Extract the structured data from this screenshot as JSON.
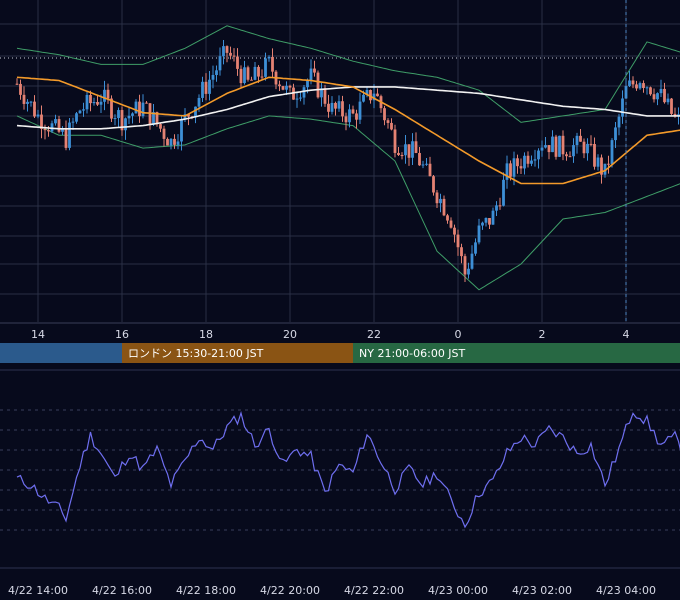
{
  "colors": {
    "background": "#070a1c",
    "grid": "#2a2f45",
    "candle_up": "#3d8fd6",
    "candle_down": "#e48273",
    "ma_short": "#f39a2a",
    "ma_long": "#f2f2f2",
    "bollinger": "#3f9e68",
    "rsi_line": "#6f6ff0",
    "session_asia": "#2b5a8c",
    "session_london": "#8a5414",
    "session_ny": "#276843",
    "reference_line": "#c9ccd8",
    "crosshair": "#4f86c2"
  },
  "sessions": [
    {
      "name": "asia",
      "label": ""
    },
    {
      "name": "london",
      "label": "ロンドン 15:30-21:00 JST"
    },
    {
      "name": "ny",
      "label": "NY 21:00-06:00 JST"
    }
  ],
  "price_axis": {
    "tick_labels": [
      "14",
      "16",
      "18",
      "20",
      "22",
      "0",
      "2",
      "4"
    ]
  },
  "time_axis": {
    "tick_labels": [
      "4/22 14:00",
      "4/22 16:00",
      "4/22 18:00",
      "4/22 20:00",
      "4/22 22:00",
      "4/23 00:00",
      "4/23 02:00",
      "4/23 04:00"
    ]
  },
  "chart_data": [
    {
      "type": "candlestick",
      "title": "",
      "x_start": "4/22 13:00",
      "x_end": "4/23 05:40",
      "ylim": [
        0,
        100
      ],
      "grid": true,
      "indicators": [
        "short moving average",
        "long moving average",
        "bollinger bands"
      ],
      "reference_level": 82,
      "cursor_time": "4/23 03:30",
      "price_path": [
        {
          "x": "4/22 13:00",
          "y": 74
        },
        {
          "x": "4/22 13:30",
          "y": 64
        },
        {
          "x": "4/22 14:10",
          "y": 57
        },
        {
          "x": "4/22 14:30",
          "y": 66
        },
        {
          "x": "4/22 15:00",
          "y": 70
        },
        {
          "x": "4/22 15:30",
          "y": 63
        },
        {
          "x": "4/22 16:00",
          "y": 67
        },
        {
          "x": "4/22 16:40",
          "y": 56
        },
        {
          "x": "4/22 17:20",
          "y": 70
        },
        {
          "x": "4/22 18:00",
          "y": 84
        },
        {
          "x": "4/22 18:30",
          "y": 74
        },
        {
          "x": "4/22 19:00",
          "y": 80
        },
        {
          "x": "4/22 19:30",
          "y": 70
        },
        {
          "x": "4/22 20:00",
          "y": 76
        },
        {
          "x": "4/22 20:30",
          "y": 66
        },
        {
          "x": "4/22 21:00",
          "y": 64
        },
        {
          "x": "4/22 21:30",
          "y": 72
        },
        {
          "x": "4/22 22:00",
          "y": 56
        },
        {
          "x": "4/22 22:30",
          "y": 52
        },
        {
          "x": "4/22 23:00",
          "y": 40
        },
        {
          "x": "4/22 23:20",
          "y": 32
        },
        {
          "x": "4/22 23:40",
          "y": 15
        },
        {
          "x": "4/23 00:00",
          "y": 28
        },
        {
          "x": "4/23 00:20",
          "y": 33
        },
        {
          "x": "4/23 00:40",
          "y": 46
        },
        {
          "x": "4/23 01:00",
          "y": 50
        },
        {
          "x": "4/23 01:30",
          "y": 56
        },
        {
          "x": "4/23 02:00",
          "y": 54
        },
        {
          "x": "4/23 02:30",
          "y": 55
        },
        {
          "x": "4/23 03:00",
          "y": 46
        },
        {
          "x": "4/23 03:30",
          "y": 72
        },
        {
          "x": "4/23 03:50",
          "y": 76
        },
        {
          "x": "4/23 04:20",
          "y": 70
        },
        {
          "x": "4/23 04:40",
          "y": 63
        },
        {
          "x": "4/23 05:10",
          "y": 60
        },
        {
          "x": "4/23 05:40",
          "y": 57
        }
      ],
      "series": [
        {
          "name": "",
          "role": "short_ma",
          "values": [
            {
              "x": "4/22 13:00",
              "y": 76
            },
            {
              "x": "4/22 14:00",
              "y": 75
            },
            {
              "x": "4/22 15:00",
              "y": 70
            },
            {
              "x": "4/22 16:00",
              "y": 65
            },
            {
              "x": "4/22 17:00",
              "y": 64
            },
            {
              "x": "4/22 18:00",
              "y": 71
            },
            {
              "x": "4/22 19:00",
              "y": 76
            },
            {
              "x": "4/22 20:00",
              "y": 75
            },
            {
              "x": "4/22 21:00",
              "y": 73
            },
            {
              "x": "4/22 22:00",
              "y": 66
            },
            {
              "x": "4/22 23:00",
              "y": 58
            },
            {
              "x": "4/23 00:00",
              "y": 50
            },
            {
              "x": "4/23 01:00",
              "y": 43
            },
            {
              "x": "4/23 02:00",
              "y": 43
            },
            {
              "x": "4/23 03:00",
              "y": 47
            },
            {
              "x": "4/23 04:00",
              "y": 58
            },
            {
              "x": "4/23 05:00",
              "y": 60
            },
            {
              "x": "4/23 05:40",
              "y": 58
            }
          ]
        },
        {
          "name": "",
          "role": "long_ma",
          "values": [
            {
              "x": "4/22 13:00",
              "y": 61
            },
            {
              "x": "4/22 14:00",
              "y": 60
            },
            {
              "x": "4/22 15:00",
              "y": 60
            },
            {
              "x": "4/22 16:00",
              "y": 61
            },
            {
              "x": "4/22 17:00",
              "y": 63
            },
            {
              "x": "4/22 18:00",
              "y": 66
            },
            {
              "x": "4/22 19:00",
              "y": 70
            },
            {
              "x": "4/22 20:00",
              "y": 72
            },
            {
              "x": "4/22 21:00",
              "y": 73
            },
            {
              "x": "4/22 22:00",
              "y": 73
            },
            {
              "x": "4/22 23:00",
              "y": 72
            },
            {
              "x": "4/23 00:00",
              "y": 71
            },
            {
              "x": "4/23 01:00",
              "y": 69
            },
            {
              "x": "4/23 02:00",
              "y": 67
            },
            {
              "x": "4/23 03:00",
              "y": 66
            },
            {
              "x": "4/23 04:00",
              "y": 64
            },
            {
              "x": "4/23 05:00",
              "y": 64
            },
            {
              "x": "4/23 05:40",
              "y": 63
            }
          ]
        },
        {
          "name": "",
          "role": "bollinger_upper",
          "values": [
            {
              "x": "4/22 13:00",
              "y": 85
            },
            {
              "x": "4/22 14:00",
              "y": 83
            },
            {
              "x": "4/22 15:00",
              "y": 80
            },
            {
              "x": "4/22 16:00",
              "y": 80
            },
            {
              "x": "4/22 17:00",
              "y": 85
            },
            {
              "x": "4/22 18:00",
              "y": 92
            },
            {
              "x": "4/22 19:00",
              "y": 88
            },
            {
              "x": "4/22 20:00",
              "y": 85
            },
            {
              "x": "4/22 21:00",
              "y": 81
            },
            {
              "x": "4/22 22:00",
              "y": 78
            },
            {
              "x": "4/22 23:00",
              "y": 76
            },
            {
              "x": "4/23 00:00",
              "y": 72
            },
            {
              "x": "4/23 01:00",
              "y": 62
            },
            {
              "x": "4/23 02:00",
              "y": 64
            },
            {
              "x": "4/23 03:00",
              "y": 66
            },
            {
              "x": "4/23 04:00",
              "y": 87
            },
            {
              "x": "4/23 05:00",
              "y": 83
            },
            {
              "x": "4/23 05:40",
              "y": 80
            }
          ]
        },
        {
          "name": "",
          "role": "bollinger_lower",
          "values": [
            {
              "x": "4/22 13:00",
              "y": 64
            },
            {
              "x": "4/22 14:00",
              "y": 58
            },
            {
              "x": "4/22 15:00",
              "y": 58
            },
            {
              "x": "4/22 16:00",
              "y": 54
            },
            {
              "x": "4/22 17:00",
              "y": 55
            },
            {
              "x": "4/22 18:00",
              "y": 60
            },
            {
              "x": "4/22 19:00",
              "y": 64
            },
            {
              "x": "4/22 20:00",
              "y": 63
            },
            {
              "x": "4/22 21:00",
              "y": 61
            },
            {
              "x": "4/22 22:00",
              "y": 50
            },
            {
              "x": "4/22 23:00",
              "y": 22
            },
            {
              "x": "4/23 00:00",
              "y": 10
            },
            {
              "x": "4/23 01:00",
              "y": 18
            },
            {
              "x": "4/23 02:00",
              "y": 32
            },
            {
              "x": "4/23 03:00",
              "y": 34
            },
            {
              "x": "4/23 04:00",
              "y": 39
            },
            {
              "x": "4/23 05:00",
              "y": 44
            },
            {
              "x": "4/23 05:40",
              "y": 46
            }
          ]
        }
      ]
    },
    {
      "type": "line",
      "title": "",
      "ylim": [
        0,
        100
      ],
      "grid": true,
      "series": [
        {
          "name": "",
          "values": [
            {
              "x": "4/22 13:00",
              "y": 45
            },
            {
              "x": "4/22 13:20",
              "y": 42
            },
            {
              "x": "4/22 13:40",
              "y": 35
            },
            {
              "x": "4/22 14:00",
              "y": 30
            },
            {
              "x": "4/22 14:10",
              "y": 25
            },
            {
              "x": "4/22 14:30",
              "y": 52
            },
            {
              "x": "4/22 14:45",
              "y": 67
            },
            {
              "x": "4/22 15:00",
              "y": 58
            },
            {
              "x": "4/22 15:20",
              "y": 45
            },
            {
              "x": "4/22 15:40",
              "y": 58
            },
            {
              "x": "4/22 16:00",
              "y": 50
            },
            {
              "x": "4/22 16:20",
              "y": 60
            },
            {
              "x": "4/22 16:40",
              "y": 42
            },
            {
              "x": "4/22 17:00",
              "y": 54
            },
            {
              "x": "4/22 17:20",
              "y": 66
            },
            {
              "x": "4/22 17:40",
              "y": 60
            },
            {
              "x": "4/22 18:00",
              "y": 71
            },
            {
              "x": "4/22 18:20",
              "y": 77
            },
            {
              "x": "4/22 18:40",
              "y": 62
            },
            {
              "x": "4/22 19:00",
              "y": 70
            },
            {
              "x": "4/22 19:20",
              "y": 52
            },
            {
              "x": "4/22 19:40",
              "y": 60
            },
            {
              "x": "4/22 20:00",
              "y": 56
            },
            {
              "x": "4/22 20:20",
              "y": 38
            },
            {
              "x": "4/22 20:40",
              "y": 52
            },
            {
              "x": "4/22 21:00",
              "y": 48
            },
            {
              "x": "4/22 21:20",
              "y": 68
            },
            {
              "x": "4/22 21:40",
              "y": 54
            },
            {
              "x": "4/22 22:00",
              "y": 40
            },
            {
              "x": "4/22 22:20",
              "y": 50
            },
            {
              "x": "4/22 22:40",
              "y": 42
            },
            {
              "x": "4/22 23:00",
              "y": 48
            },
            {
              "x": "4/22 23:20",
              "y": 34
            },
            {
              "x": "4/22 23:40",
              "y": 22
            },
            {
              "x": "4/23 00:00",
              "y": 38
            },
            {
              "x": "4/23 00:20",
              "y": 44
            },
            {
              "x": "4/23 00:40",
              "y": 58
            },
            {
              "x": "4/23 01:00",
              "y": 66
            },
            {
              "x": "4/23 01:20",
              "y": 62
            },
            {
              "x": "4/23 01:40",
              "y": 70
            },
            {
              "x": "4/23 02:00",
              "y": 66
            },
            {
              "x": "4/23 02:20",
              "y": 58
            },
            {
              "x": "4/23 02:40",
              "y": 62
            },
            {
              "x": "4/23 03:00",
              "y": 42
            },
            {
              "x": "4/23 03:20",
              "y": 60
            },
            {
              "x": "4/23 03:40",
              "y": 80
            },
            {
              "x": "4/23 04:00",
              "y": 74
            },
            {
              "x": "4/23 04:20",
              "y": 62
            },
            {
              "x": "4/23 04:40",
              "y": 66
            },
            {
              "x": "4/23 05:00",
              "y": 52
            },
            {
              "x": "4/23 05:20",
              "y": 46
            },
            {
              "x": "4/23 05:40",
              "y": 50
            }
          ]
        }
      ]
    }
  ]
}
